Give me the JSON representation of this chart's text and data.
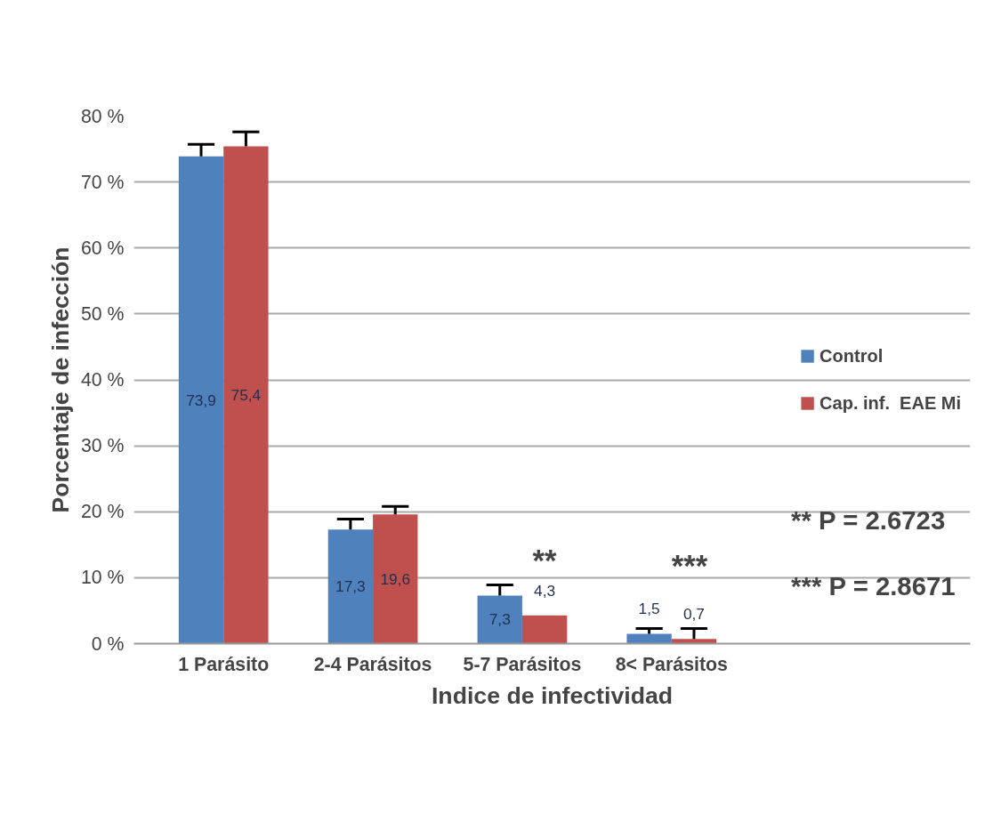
{
  "chart_data": {
    "type": "bar",
    "xlabel": "Indice de infectividad",
    "ylabel": "Porcentaje de infección",
    "categories": [
      "1 Parásito",
      "2-4 Parásitos",
      "5-7 Parásitos",
      "8< Parásitos"
    ],
    "series": [
      {
        "name": "Control",
        "color": "#4f81bd",
        "values": [
          73.9,
          17.3,
          7.3,
          1.5
        ],
        "errors": [
          1.8,
          1.6,
          1.6,
          0.8
        ],
        "value_labels": [
          "73,9",
          "17,3",
          "7,3",
          "1,5"
        ]
      },
      {
        "name": "Cap. inf.  EAE Mi",
        "color": "#c0504d",
        "values": [
          75.4,
          19.6,
          4.3,
          0.7
        ],
        "errors": [
          2.2,
          1.2,
          null,
          1.6
        ],
        "value_labels": [
          "75,4",
          "19,6",
          "4,3",
          "0,7"
        ]
      }
    ],
    "ylim": [
      0,
      80
    ],
    "yticks": [
      {
        "value": 0,
        "label": "0 %"
      },
      {
        "value": 10,
        "label": "10 %"
      },
      {
        "value": 20,
        "label": "20 %"
      },
      {
        "value": 30,
        "label": "30 %"
      },
      {
        "value": 40,
        "label": "40 %"
      },
      {
        "value": 50,
        "label": "50 %"
      },
      {
        "value": 60,
        "label": "60 %"
      },
      {
        "value": 70,
        "label": "70 %"
      },
      {
        "value": 80,
        "label": "80 %"
      }
    ],
    "grid": "y",
    "legend": "right",
    "annotations": [
      "**",
      "***",
      "** P = 2.6723",
      "*** P = 2.8671"
    ]
  }
}
